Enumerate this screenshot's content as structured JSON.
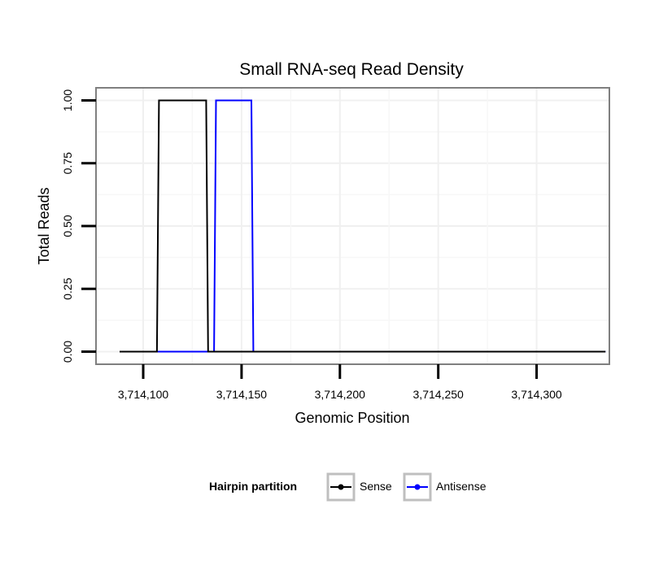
{
  "chart_data": {
    "type": "line",
    "title": "Small RNA-seq Read Density",
    "xlabel": "Genomic Position",
    "ylabel": "Total Reads",
    "xlim": [
      3714076,
      3714337
    ],
    "ylim": [
      -0.05,
      1.05
    ],
    "x_ticks": [
      3714100,
      3714150,
      3714200,
      3714250,
      3714300
    ],
    "x_tick_labels": [
      "3,714,100",
      "3,714,150",
      "3,714,200",
      "3,714,250",
      "3,714,300"
    ],
    "y_ticks": [
      0,
      0.25,
      0.5,
      0.75,
      1.0
    ],
    "y_tick_labels": [
      "0.00",
      "0.25",
      "0.50",
      "0.75",
      "1.00"
    ],
    "grid": true,
    "legend": {
      "title": "Hairpin partition",
      "position": "bottom"
    },
    "series": [
      {
        "name": "Sense",
        "color": "#000000",
        "x": [
          3714088,
          3714107,
          3714108,
          3714132,
          3714133,
          3714335
        ],
        "y": [
          0,
          0,
          1,
          1,
          0,
          0
        ]
      },
      {
        "name": "Antisense",
        "color": "#0000ff",
        "x": [
          3714107,
          3714136,
          3714137,
          3714155,
          3714156,
          3714335
        ],
        "y": [
          0,
          0,
          1,
          1,
          0,
          0
        ]
      }
    ]
  }
}
